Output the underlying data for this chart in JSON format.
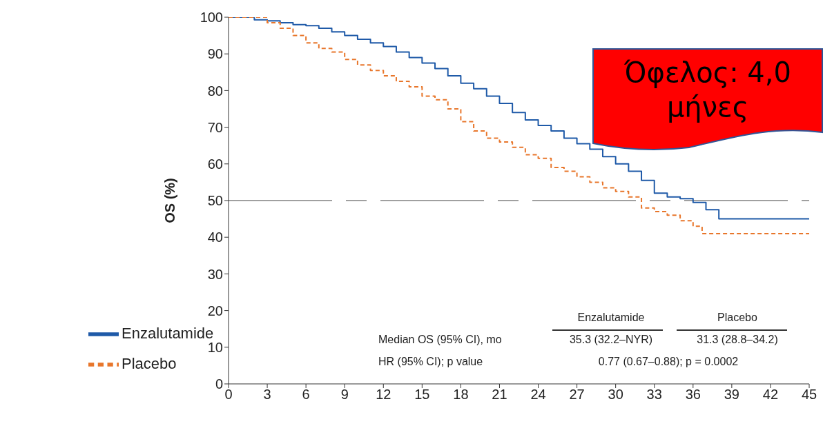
{
  "chart_data": {
    "type": "step",
    "ylabel": "OS (%)",
    "xlim": [
      0,
      45
    ],
    "xticks": [
      0,
      3,
      6,
      9,
      12,
      15,
      18,
      21,
      24,
      27,
      30,
      33,
      36,
      39,
      42,
      45
    ],
    "ylim": [
      0,
      100
    ],
    "yticks": [
      0,
      10,
      20,
      30,
      40,
      50,
      60,
      70,
      80,
      90,
      100
    ],
    "series": [
      {
        "name": "Enzalutamide",
        "color": "#1f5aa8",
        "line_style": "solid",
        "x": [
          0,
          1,
          2,
          3,
          4,
          5,
          6,
          7,
          8,
          9,
          10,
          11,
          12,
          13,
          14,
          15,
          16,
          17,
          18,
          19,
          20,
          21,
          22,
          23,
          24,
          25,
          26,
          27,
          28,
          29,
          30,
          31,
          32,
          33,
          34,
          35,
          36,
          37,
          38,
          45
        ],
        "values": [
          100,
          100,
          99.3,
          99,
          98.5,
          98,
          97.7,
          97,
          96,
          95,
          94,
          93,
          92,
          90.5,
          89,
          87.5,
          86,
          84,
          82,
          80.5,
          78.5,
          76.5,
          74,
          72,
          70.5,
          69,
          67,
          65.5,
          64,
          62,
          60,
          58,
          55.5,
          52,
          51,
          50.5,
          49.5,
          47.5,
          45,
          45
        ]
      },
      {
        "name": "Placebo",
        "color": "#e8762b",
        "line_style": "dashed",
        "x": [
          0,
          2,
          3,
          4,
          5,
          6,
          7,
          8,
          9,
          10,
          11,
          12,
          13,
          14,
          15,
          16,
          17,
          18,
          19,
          20,
          21,
          22,
          23,
          24,
          25,
          26,
          27,
          28,
          29,
          30,
          31,
          32,
          33,
          34,
          35,
          36,
          36.7,
          45
        ],
        "values": [
          100,
          100,
          98.5,
          97,
          95,
          93,
          91.5,
          90.5,
          88.5,
          87,
          85.5,
          84,
          82.5,
          81,
          78.5,
          77.5,
          75,
          71.5,
          69,
          67,
          66,
          64.5,
          62.5,
          61.5,
          59,
          58,
          56.5,
          55,
          53.5,
          52.5,
          51,
          48,
          47,
          46,
          44.5,
          43,
          41,
          41
        ]
      }
    ],
    "ref_lines": [
      {
        "axis": "y",
        "value": 50,
        "color": "#a0a0a0",
        "line_style": "dashed"
      }
    ],
    "legend": "bottom left",
    "grid": false,
    "annotations": [
      "Όφελος:  4,0 μήνες",
      "Enzalutamide",
      "Placebo",
      "Median OS (95% CI), mo",
      "35.3 (32.2–NYR)",
      "31.3 (28.8–34.2)",
      "HR (95% CI); p value",
      "0.77 (0.67–0.88); p = 0.0002"
    ]
  }
}
